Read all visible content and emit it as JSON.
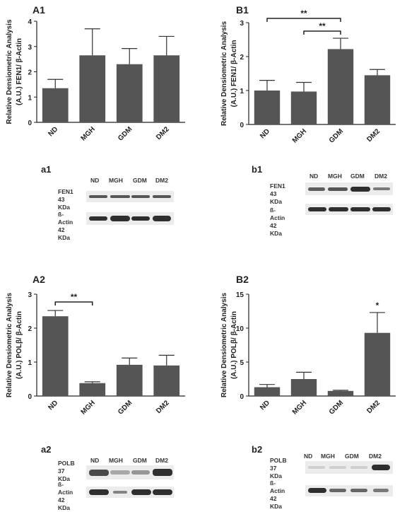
{
  "panels": {
    "A1": "A1",
    "B1": "B1",
    "A2": "A2",
    "B2": "B2",
    "a1": "a1",
    "b1": "b1",
    "a2": "a2",
    "b2": "b2"
  },
  "colors": {
    "bar": "#555555",
    "axis": "#222222",
    "band": "#2f2f2f"
  },
  "chart_data": [
    {
      "id": "A1",
      "type": "bar",
      "categories": [
        "ND",
        "MGH",
        "GDM",
        "DM2"
      ],
      "values": [
        1.35,
        2.65,
        2.3,
        2.65
      ],
      "errors": [
        0.35,
        1.05,
        0.62,
        0.75
      ],
      "ylabel": [
        "Relative Densiometric Analysis",
        "(A.U.) FEN1/ β-Actin"
      ],
      "ylim": [
        0,
        4
      ],
      "yticks": [
        "0",
        "1",
        "2",
        "3",
        "4"
      ],
      "significance": []
    },
    {
      "id": "B1",
      "type": "bar",
      "categories": [
        "ND",
        "MGH",
        "GDM",
        "DM2"
      ],
      "values": [
        1.0,
        0.97,
        2.22,
        1.45
      ],
      "errors": [
        0.3,
        0.27,
        0.32,
        0.17
      ],
      "ylabel": [
        "Relative Densiometric Analysis",
        "(A.U.) FEN1/ β-Actin"
      ],
      "ylim": [
        0,
        3
      ],
      "yticks": [
        "0",
        "1",
        "2",
        "3"
      ],
      "significance": [
        {
          "from": 0,
          "to": 2,
          "label": "**"
        },
        {
          "from": 1,
          "to": 2,
          "label": "**"
        }
      ]
    },
    {
      "id": "A2",
      "type": "bar",
      "categories": [
        "ND",
        "MGH",
        "GDM",
        "DM2"
      ],
      "values": [
        2.35,
        0.38,
        0.92,
        0.9
      ],
      "errors": [
        0.17,
        0.04,
        0.2,
        0.3
      ],
      "ylabel": [
        "Relative Densiometric Analysis",
        "(A.U.) POLβ/ β-Actin"
      ],
      "ylim": [
        0,
        3
      ],
      "yticks": [
        "0",
        "1",
        "2",
        "3"
      ],
      "significance": [
        {
          "from": 0,
          "to": 1,
          "label": "**"
        }
      ]
    },
    {
      "id": "B2",
      "type": "bar",
      "categories": [
        "ND",
        "MGH",
        "GDM",
        "DM2"
      ],
      "values": [
        1.3,
        2.5,
        0.75,
        9.3
      ],
      "errors": [
        0.4,
        1.0,
        0.1,
        3.0
      ],
      "ylabel": [
        "Relative Densiometric Analysis",
        "(A.U.) POLβ/ β-Actin"
      ],
      "ylim": [
        0,
        15
      ],
      "yticks": [
        "0",
        "5",
        "10",
        "15"
      ],
      "significance": [
        {
          "bar": 3,
          "label": "*"
        }
      ]
    }
  ],
  "blots": {
    "a1": {
      "lanes": [
        "ND",
        "MGH",
        "GDM",
        "DM2"
      ],
      "top_name": "FEN1",
      "top_kda": "43 KDa",
      "bottom_name": "ß-Actin",
      "bottom_kda": "42 KDa"
    },
    "b1": {
      "lanes": [
        "ND",
        "MGH",
        "GDM",
        "DM2"
      ],
      "top_name": "FEN1",
      "top_kda": "43 KDa",
      "bottom_name": "ß-Actin",
      "bottom_kda": "42 KDa"
    },
    "a2": {
      "lanes": [
        "ND",
        "MGH",
        "GDM",
        "DM2"
      ],
      "top_name": "POLB",
      "top_kda": "37 KDa",
      "bottom_name": "ß-Actin",
      "bottom_kda": "42 KDa"
    },
    "b2": {
      "lanes": [
        "ND",
        "MGH",
        "GDM",
        "DM2"
      ],
      "top_name": "POLB",
      "top_kda": "37 KDa",
      "bottom_name": "ß-Actin",
      "bottom_kda": "42 KDa"
    }
  }
}
